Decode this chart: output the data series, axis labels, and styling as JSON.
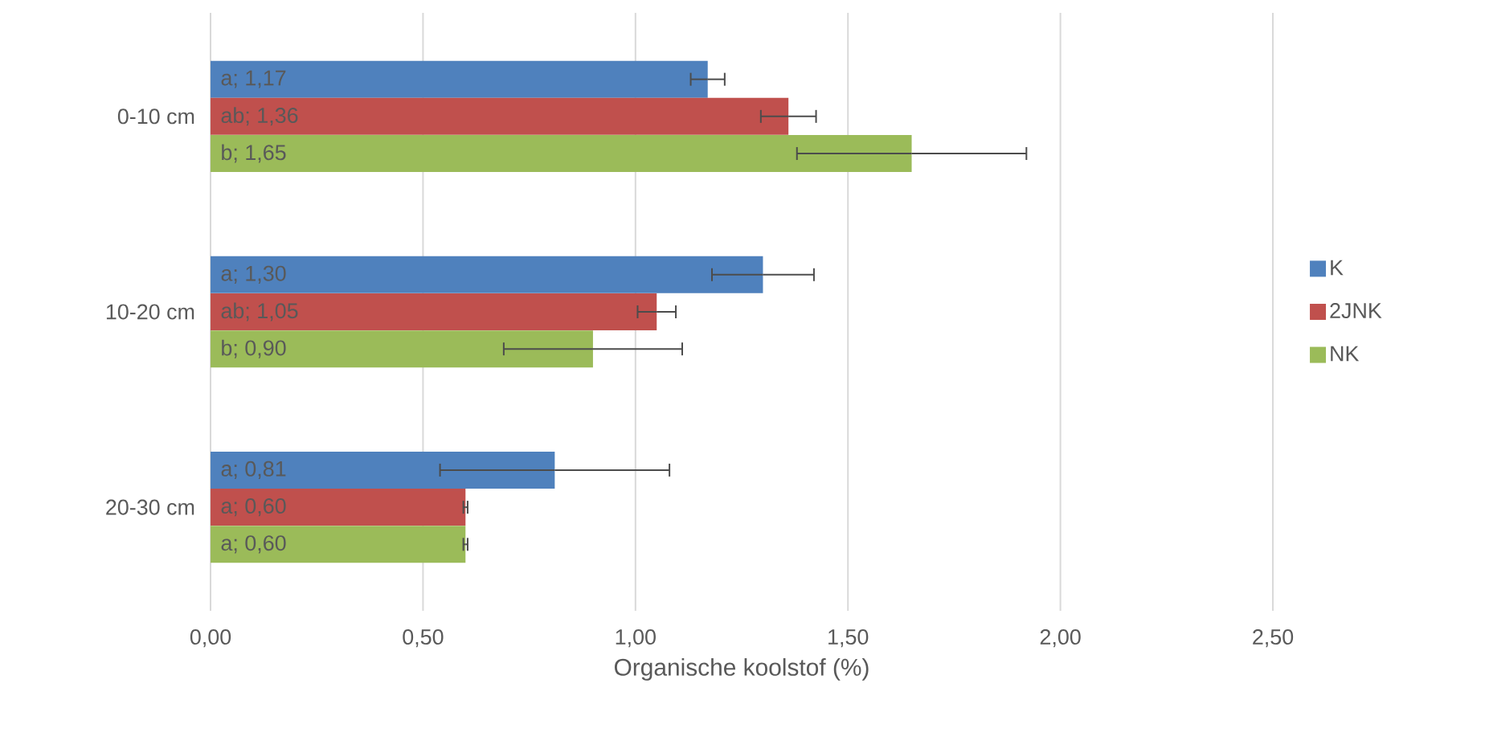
{
  "chart_data": {
    "type": "bar",
    "orientation": "horizontal",
    "xlabel": "Organische koolstof (%)",
    "categories": [
      "0-10 cm",
      "10-20 cm",
      "20-30 cm"
    ],
    "series": [
      {
        "name": "K",
        "color": "#4f81bd",
        "values": [
          1.17,
          1.3,
          0.81
        ],
        "errors": [
          0.04,
          0.12,
          0.27
        ],
        "value_labels": [
          "a; 1,17",
          "a; 1,30",
          "a; 0,81"
        ]
      },
      {
        "name": "2JNK",
        "color": "#c0504d",
        "values": [
          1.36,
          1.05,
          0.6
        ],
        "errors": [
          0.065,
          0.045,
          0.005
        ],
        "value_labels": [
          "ab; 1,36",
          "ab; 1,05",
          "a; 0,60"
        ]
      },
      {
        "name": "NK",
        "color": "#9bbb59",
        "values": [
          1.65,
          0.9,
          0.6
        ],
        "errors": [
          0.27,
          0.21,
          0.005
        ],
        "value_labels": [
          "b; 1,65",
          "b; 0,90",
          "a; 0,60"
        ]
      }
    ],
    "xlim": [
      0,
      2.5
    ],
    "xticks": [
      {
        "value": 0,
        "label": "0,00"
      },
      {
        "value": 0.5,
        "label": "0,50"
      },
      {
        "value": 1,
        "label": "1,00"
      },
      {
        "value": 1.5,
        "label": "1,50"
      },
      {
        "value": 2,
        "label": "2,00"
      },
      {
        "value": 2.5,
        "label": "2,50"
      }
    ],
    "grid": "x",
    "legend": "right"
  }
}
